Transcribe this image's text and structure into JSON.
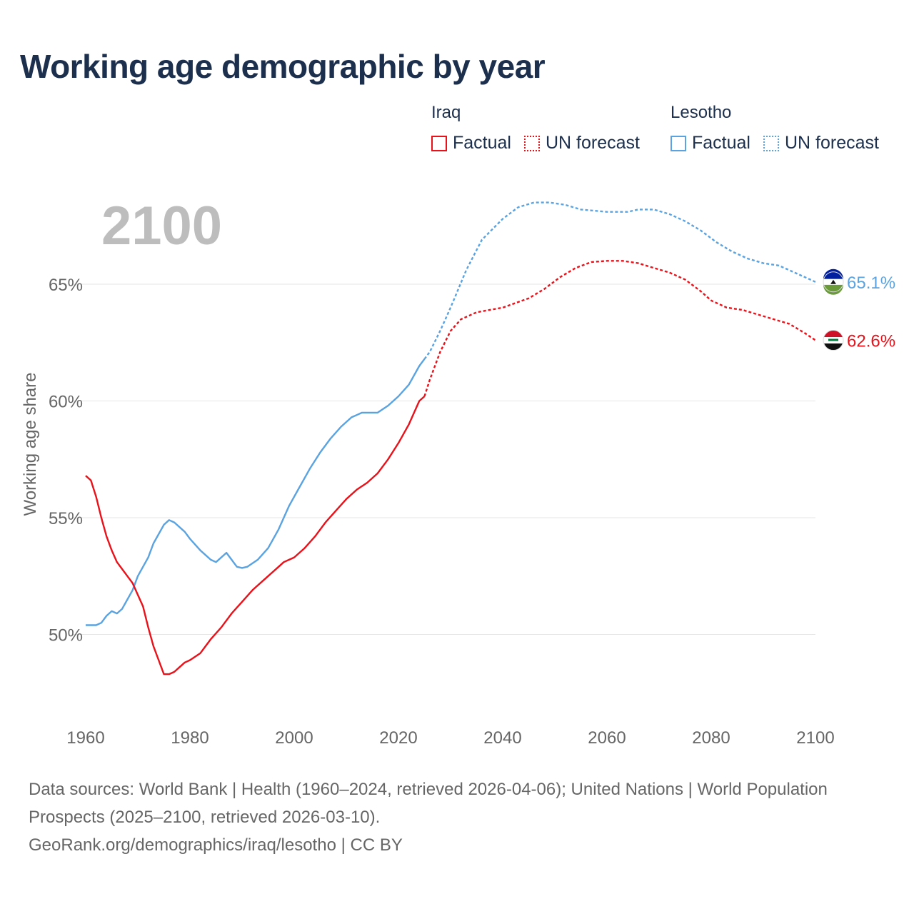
{
  "title": "Working age demographic by year",
  "legend": {
    "groups": [
      {
        "name": "Iraq",
        "factual_label": "Factual",
        "forecast_label": "UN forecast",
        "color": "#e8121a"
      },
      {
        "name": "Lesotho",
        "factual_label": "Factual",
        "forecast_label": "UN forecast",
        "color": "#5ba3e0"
      }
    ]
  },
  "year_label": "2100",
  "source": {
    "line1": "Data sources: World Bank | Health (1960–2024, retrieved 2026-04-06); United Nations | World Population Prospects (2025–2100, retrieved 2026-03-10).",
    "line2": "GeoRank.org/demographics/iraq/lesotho | CC BY"
  },
  "chart_data": {
    "type": "line",
    "title": "Working age demographic by year",
    "xlabel": "",
    "ylabel": "Working age share",
    "xlim": [
      1960,
      2100
    ],
    "ylim": [
      46.5,
      68.5
    ],
    "x_ticks": [
      1960,
      1980,
      2000,
      2020,
      2040,
      2060,
      2080,
      2100
    ],
    "x_tick_labels": [
      "1960",
      "1980",
      "2000",
      "2020",
      "2040",
      "2060",
      "2080",
      "2100"
    ],
    "y_ticks": [
      50,
      55,
      60,
      65
    ],
    "y_tick_labels": [
      "50%",
      "55%",
      "60%",
      "65%"
    ],
    "grid": true,
    "forecast_start": 2025,
    "series": [
      {
        "name": "Lesotho",
        "color": "#5ba3e0",
        "end_label": "65.1%",
        "points": [
          [
            1960,
            50.4
          ],
          [
            1962,
            50.4
          ],
          [
            1963,
            50.5
          ],
          [
            1964,
            50.8
          ],
          [
            1965,
            51.0
          ],
          [
            1966,
            50.9
          ],
          [
            1967,
            51.1
          ],
          [
            1968,
            51.5
          ],
          [
            1969,
            51.9
          ],
          [
            1970,
            52.5
          ],
          [
            1972,
            53.3
          ],
          [
            1973,
            53.9
          ],
          [
            1975,
            54.7
          ],
          [
            1976,
            54.9
          ],
          [
            1977,
            54.8
          ],
          [
            1979,
            54.4
          ],
          [
            1980,
            54.1
          ],
          [
            1982,
            53.6
          ],
          [
            1984,
            53.2
          ],
          [
            1985,
            53.1
          ],
          [
            1987,
            53.5
          ],
          [
            1988,
            53.2
          ],
          [
            1989,
            52.9
          ],
          [
            1990,
            52.85
          ],
          [
            1991,
            52.9
          ],
          [
            1993,
            53.2
          ],
          [
            1995,
            53.7
          ],
          [
            1997,
            54.5
          ],
          [
            1999,
            55.5
          ],
          [
            2001,
            56.3
          ],
          [
            2003,
            57.1
          ],
          [
            2005,
            57.8
          ],
          [
            2007,
            58.4
          ],
          [
            2009,
            58.9
          ],
          [
            2011,
            59.3
          ],
          [
            2012,
            59.4
          ],
          [
            2013,
            59.5
          ],
          [
            2016,
            59.5
          ],
          [
            2018,
            59.8
          ],
          [
            2020,
            60.2
          ],
          [
            2022,
            60.7
          ],
          [
            2024,
            61.5
          ],
          [
            2025,
            61.8
          ],
          [
            2026,
            62.1
          ],
          [
            2028,
            63.0
          ],
          [
            2030,
            64.0
          ],
          [
            2033,
            65.6
          ],
          [
            2036,
            66.9
          ],
          [
            2040,
            67.8
          ],
          [
            2043,
            68.3
          ],
          [
            2046,
            68.5
          ],
          [
            2049,
            68.5
          ],
          [
            2052,
            68.4
          ],
          [
            2055,
            68.2
          ],
          [
            2060,
            68.1
          ],
          [
            2064,
            68.1
          ],
          [
            2066,
            68.2
          ],
          [
            2069,
            68.2
          ],
          [
            2072,
            68.0
          ],
          [
            2075,
            67.7
          ],
          [
            2078,
            67.3
          ],
          [
            2081,
            66.8
          ],
          [
            2084,
            66.4
          ],
          [
            2087,
            66.1
          ],
          [
            2090,
            65.9
          ],
          [
            2093,
            65.8
          ],
          [
            2096,
            65.5
          ],
          [
            2099,
            65.2
          ],
          [
            2100,
            65.1
          ]
        ]
      },
      {
        "name": "Iraq",
        "color": "#e8121a",
        "end_label": "62.6%",
        "points": [
          [
            1960,
            56.8
          ],
          [
            1961,
            56.6
          ],
          [
            1962,
            55.9
          ],
          [
            1963,
            55.0
          ],
          [
            1964,
            54.2
          ],
          [
            1965,
            53.6
          ],
          [
            1966,
            53.1
          ],
          [
            1967,
            52.8
          ],
          [
            1968,
            52.5
          ],
          [
            1969,
            52.2
          ],
          [
            1970,
            51.7
          ],
          [
            1971,
            51.2
          ],
          [
            1972,
            50.3
          ],
          [
            1973,
            49.5
          ],
          [
            1974,
            48.9
          ],
          [
            1975,
            48.3
          ],
          [
            1976,
            48.3
          ],
          [
            1977,
            48.4
          ],
          [
            1978,
            48.6
          ],
          [
            1979,
            48.8
          ],
          [
            1980,
            48.9
          ],
          [
            1982,
            49.2
          ],
          [
            1983,
            49.5
          ],
          [
            1984,
            49.8
          ],
          [
            1986,
            50.3
          ],
          [
            1988,
            50.9
          ],
          [
            1990,
            51.4
          ],
          [
            1992,
            51.9
          ],
          [
            1994,
            52.3
          ],
          [
            1996,
            52.7
          ],
          [
            1998,
            53.1
          ],
          [
            2000,
            53.3
          ],
          [
            2002,
            53.7
          ],
          [
            2004,
            54.2
          ],
          [
            2006,
            54.8
          ],
          [
            2008,
            55.3
          ],
          [
            2010,
            55.8
          ],
          [
            2012,
            56.2
          ],
          [
            2014,
            56.5
          ],
          [
            2016,
            56.9
          ],
          [
            2018,
            57.5
          ],
          [
            2020,
            58.2
          ],
          [
            2022,
            59.0
          ],
          [
            2024,
            60.0
          ],
          [
            2025,
            60.2
          ],
          [
            2026,
            60.9
          ],
          [
            2028,
            62.1
          ],
          [
            2030,
            63.0
          ],
          [
            2032,
            63.5
          ],
          [
            2035,
            63.8
          ],
          [
            2040,
            64.0
          ],
          [
            2045,
            64.4
          ],
          [
            2048,
            64.8
          ],
          [
            2051,
            65.3
          ],
          [
            2054,
            65.7
          ],
          [
            2057,
            65.95
          ],
          [
            2060,
            66.0
          ],
          [
            2063,
            66.0
          ],
          [
            2066,
            65.9
          ],
          [
            2069,
            65.7
          ],
          [
            2072,
            65.5
          ],
          [
            2075,
            65.2
          ],
          [
            2078,
            64.7
          ],
          [
            2080,
            64.3
          ],
          [
            2083,
            64.0
          ],
          [
            2086,
            63.9
          ],
          [
            2089,
            63.7
          ],
          [
            2092,
            63.5
          ],
          [
            2095,
            63.3
          ],
          [
            2098,
            62.9
          ],
          [
            2100,
            62.6
          ]
        ]
      }
    ]
  }
}
